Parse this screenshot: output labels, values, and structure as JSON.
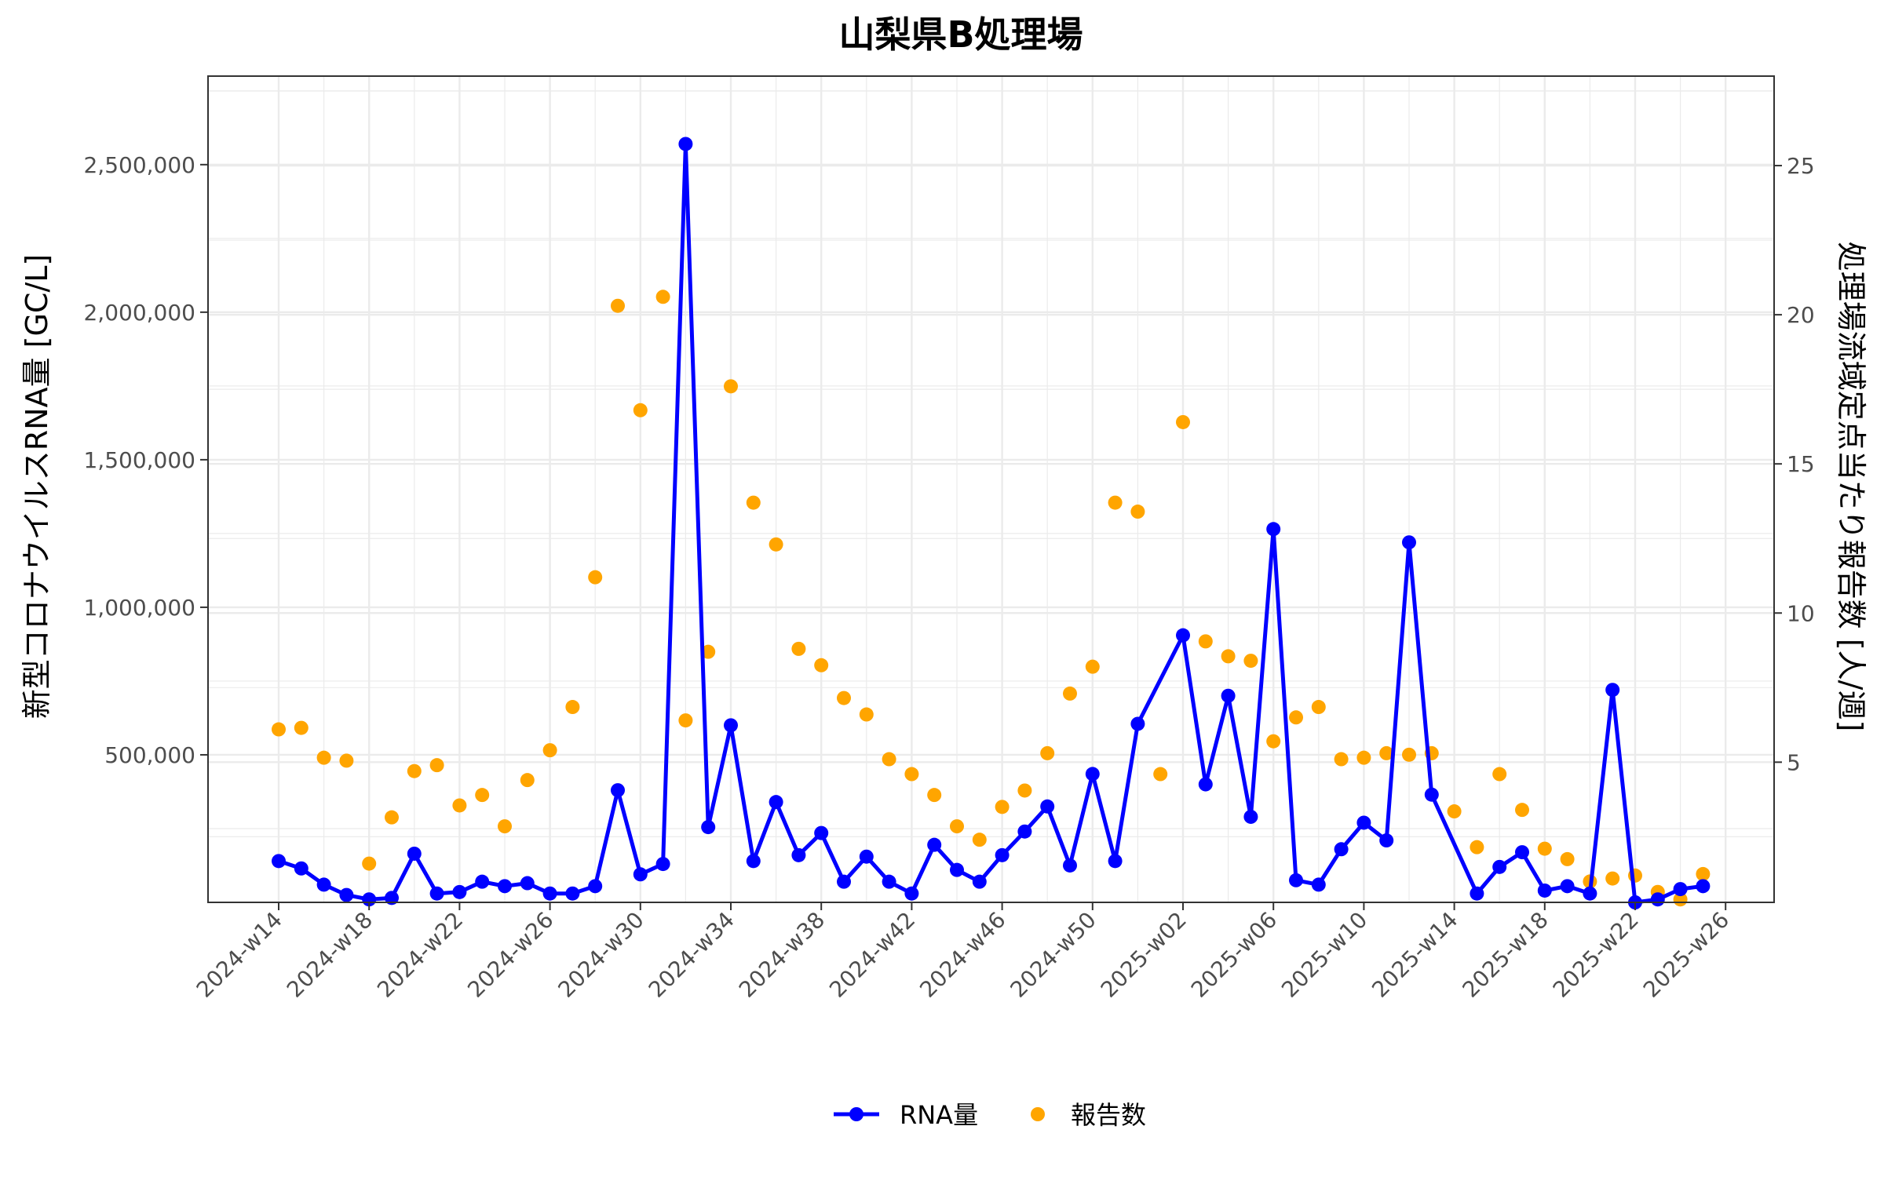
{
  "chart_data": {
    "type": "line",
    "title": "山梨県B処理場",
    "ylabel": "新型コロナウイルスRNA量 [GC/L]",
    "y2label": "処理場流域定点当たり報告数 [人/週]",
    "xlabel": "",
    "x_tick_labels": [
      "2024-w14",
      "2024-w18",
      "2024-w22",
      "2024-w26",
      "2024-w30",
      "2024-w34",
      "2024-w38",
      "2024-w42",
      "2024-w46",
      "2024-w50",
      "2025-w02",
      "2025-w06",
      "2025-w10",
      "2025-w14",
      "2025-w18",
      "2025-w22",
      "2025-w26"
    ],
    "y_ticks": [
      500000,
      1000000,
      1500000,
      2000000,
      2500000
    ],
    "y_tick_labels": [
      "500,000",
      "1,000,000",
      "1,500,000",
      "2,000,000",
      "2,500,000"
    ],
    "y2_ticks": [
      5,
      10,
      15,
      20,
      25
    ],
    "y2_tick_labels": [
      "5",
      "10",
      "15",
      "20",
      "25"
    ],
    "ylim": [
      0,
      2800000
    ],
    "y2lim": [
      0.3,
      28
    ],
    "grid": true,
    "legend_position": "bottom",
    "colors": {
      "rna": "#0000FF",
      "reports": "#FFA500"
    },
    "series": [
      {
        "name": "RNA量",
        "style": "line+points",
        "color": "#0000FF",
        "points": [
          [
            "2024-w14",
            140000
          ],
          [
            "2024-w15",
            115000
          ],
          [
            "2024-w16",
            60000
          ],
          [
            "2024-w17",
            25000
          ],
          [
            "2024-w18",
            10000
          ],
          [
            "2024-w19",
            15000
          ],
          [
            "2024-w20",
            165000
          ],
          [
            "2024-w21",
            30000
          ],
          [
            "2024-w22",
            35000
          ],
          [
            "2024-w23",
            70000
          ],
          [
            "2024-w24",
            55000
          ],
          [
            "2024-w25",
            65000
          ],
          [
            "2024-w26",
            30000
          ],
          [
            "2024-w27",
            30000
          ],
          [
            "2024-w28",
            55000
          ],
          [
            "2024-w29",
            380000
          ],
          [
            "2024-w30",
            95000
          ],
          [
            "2024-w31",
            130000
          ],
          [
            "2024-w32",
            2570000
          ],
          [
            "2024-w33",
            255000
          ],
          [
            "2024-w34",
            600000
          ],
          [
            "2024-w35",
            140000
          ],
          [
            "2024-w36",
            340000
          ],
          [
            "2024-w37",
            160000
          ],
          [
            "2024-w38",
            235000
          ],
          [
            "2024-w39",
            70000
          ],
          [
            "2024-w40",
            155000
          ],
          [
            "2024-w41",
            70000
          ],
          [
            "2024-w42",
            30000
          ],
          [
            "2024-w43",
            195000
          ],
          [
            "2024-w44",
            110000
          ],
          [
            "2024-w45",
            70000
          ],
          [
            "2024-w46",
            160000
          ],
          [
            "2024-w47",
            240000
          ],
          [
            "2024-w48",
            325000
          ],
          [
            "2024-w49",
            125000
          ],
          [
            "2024-w50",
            435000
          ],
          [
            "2024-w51",
            140000
          ],
          [
            "2024-w52",
            605000
          ],
          [
            "2025-w02",
            905000
          ],
          [
            "2025-w03",
            400000
          ],
          [
            "2025-w04",
            700000
          ],
          [
            "2025-w05",
            290000
          ],
          [
            "2025-w06",
            1265000
          ],
          [
            "2025-w07",
            75000
          ],
          [
            "2025-w08",
            60000
          ],
          [
            "2025-w09",
            180000
          ],
          [
            "2025-w10",
            270000
          ],
          [
            "2025-w11",
            210000
          ],
          [
            "2025-w12",
            1220000
          ],
          [
            "2025-w13",
            365000
          ],
          [
            "2025-w15",
            30000
          ],
          [
            "2025-w16",
            120000
          ],
          [
            "2025-w17",
            170000
          ],
          [
            "2025-w18",
            40000
          ],
          [
            "2025-w19",
            55000
          ],
          [
            "2025-w20",
            30000
          ],
          [
            "2025-w21",
            720000
          ],
          [
            "2025-w22",
            0
          ],
          [
            "2025-w23",
            10000
          ],
          [
            "2025-w24",
            45000
          ],
          [
            "2025-w25",
            55000
          ]
        ]
      },
      {
        "name": "報告数",
        "style": "points",
        "axis": "right",
        "color": "#FFA500",
        "points": [
          [
            "2024-w14",
            6.1
          ],
          [
            "2024-w15",
            6.15
          ],
          [
            "2024-w16",
            5.15
          ],
          [
            "2024-w17",
            5.05
          ],
          [
            "2024-w18",
            1.6
          ],
          [
            "2024-w19",
            3.15
          ],
          [
            "2024-w20",
            4.7
          ],
          [
            "2024-w21",
            4.9
          ],
          [
            "2024-w22",
            3.55
          ],
          [
            "2024-w23",
            3.9
          ],
          [
            "2024-w24",
            2.85
          ],
          [
            "2024-w25",
            4.4
          ],
          [
            "2024-w26",
            5.4
          ],
          [
            "2024-w27",
            6.85
          ],
          [
            "2024-w28",
            11.2
          ],
          [
            "2024-w29",
            20.3
          ],
          [
            "2024-w30",
            16.8
          ],
          [
            "2024-w31",
            20.6
          ],
          [
            "2024-w32",
            6.4
          ],
          [
            "2024-w33",
            8.7
          ],
          [
            "2024-w34",
            17.6
          ],
          [
            "2024-w35",
            13.7
          ],
          [
            "2024-w36",
            12.3
          ],
          [
            "2024-w37",
            8.8
          ],
          [
            "2024-w38",
            8.25
          ],
          [
            "2024-w39",
            7.15
          ],
          [
            "2024-w40",
            6.6
          ],
          [
            "2024-w41",
            5.1
          ],
          [
            "2024-w42",
            4.6
          ],
          [
            "2024-w43",
            3.9
          ],
          [
            "2024-w44",
            2.85
          ],
          [
            "2024-w45",
            2.4
          ],
          [
            "2024-w46",
            3.5
          ],
          [
            "2024-w47",
            4.05
          ],
          [
            "2024-w48",
            5.3
          ],
          [
            "2024-w49",
            7.3
          ],
          [
            "2024-w50",
            8.2
          ],
          [
            "2024-w51",
            13.7
          ],
          [
            "2024-w52",
            13.4
          ],
          [
            "2025-w01",
            4.6
          ],
          [
            "2025-w02",
            16.4
          ],
          [
            "2025-w03",
            9.05
          ],
          [
            "2025-w04",
            8.55
          ],
          [
            "2025-w05",
            8.4
          ],
          [
            "2025-w06",
            5.7
          ],
          [
            "2025-w07",
            6.5
          ],
          [
            "2025-w08",
            6.85
          ],
          [
            "2025-w09",
            5.1
          ],
          [
            "2025-w10",
            5.15
          ],
          [
            "2025-w11",
            5.3
          ],
          [
            "2025-w12",
            5.25
          ],
          [
            "2025-w13",
            5.3
          ],
          [
            "2025-w14",
            3.35
          ],
          [
            "2025-w15",
            2.15
          ],
          [
            "2025-w16",
            4.6
          ],
          [
            "2025-w17",
            3.4
          ],
          [
            "2025-w18",
            2.1
          ],
          [
            "2025-w19",
            1.75
          ],
          [
            "2025-w20",
            1.0
          ],
          [
            "2025-w21",
            1.1
          ],
          [
            "2025-w22",
            1.2
          ],
          [
            "2025-w23",
            0.65
          ],
          [
            "2025-w24",
            0.4
          ],
          [
            "2025-w25",
            1.25
          ]
        ]
      }
    ]
  }
}
